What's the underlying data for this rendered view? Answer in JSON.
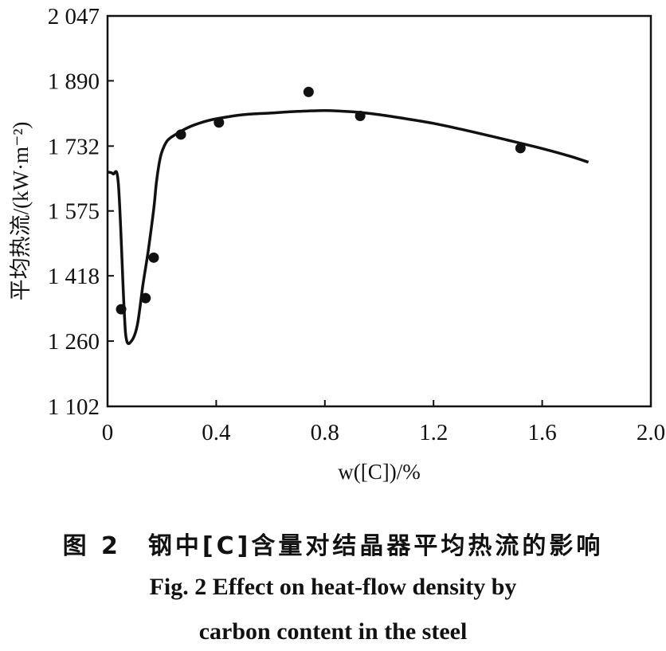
{
  "chart_data": {
    "type": "scatter",
    "xlabel": "w([C])/%",
    "ylabel": "平均热流/(kW·m⁻²)",
    "xlim": [
      0,
      2.0
    ],
    "ylim": [
      1102,
      2047
    ],
    "x_ticks": [
      0,
      0.4,
      0.8,
      1.2,
      1.6,
      2.0
    ],
    "x_tick_labels": [
      "0",
      "0.4",
      "0.8",
      "1.2",
      "1.6",
      "2.0"
    ],
    "y_ticks": [
      1102,
      1260,
      1418,
      1575,
      1732,
      1890,
      2047
    ],
    "y_tick_labels": [
      "1 102",
      "1 260",
      "1 418",
      "1 575",
      "1 732",
      "1 890",
      "2 047"
    ],
    "grid": false,
    "series": [
      {
        "kind": "scatter",
        "x": [
          0.05,
          0.14,
          0.17,
          0.27,
          0.41,
          0.74,
          0.93,
          1.52
        ],
        "y": [
          1337,
          1364,
          1462,
          1760,
          1789,
          1863,
          1805,
          1727
        ]
      },
      {
        "kind": "line",
        "x": [
          0,
          0.02,
          0.04,
          0.06,
          0.07,
          0.09,
          0.11,
          0.13,
          0.15,
          0.17,
          0.18,
          0.19,
          0.2,
          0.22,
          0.25,
          0.3,
          0.35,
          0.4,
          0.5,
          0.6,
          0.7,
          0.8,
          0.9,
          1.0,
          1.1,
          1.2,
          1.3,
          1.4,
          1.5,
          1.6,
          1.7,
          1.77
        ],
        "y": [
          1669,
          1665,
          1640,
          1350,
          1262,
          1262,
          1300,
          1395,
          1480,
          1580,
          1645,
          1690,
          1718,
          1745,
          1760,
          1778,
          1790,
          1798,
          1808,
          1812,
          1816,
          1818,
          1815,
          1808,
          1798,
          1787,
          1773,
          1758,
          1742,
          1726,
          1708,
          1693
        ]
      }
    ]
  },
  "caption": {
    "zh": "图 2　钢中[C]含量对结晶器平均热流的影响",
    "en_line1": "Fig. 2    Effect on heat-flow density by",
    "en_line2": "carbon content in the steel"
  }
}
